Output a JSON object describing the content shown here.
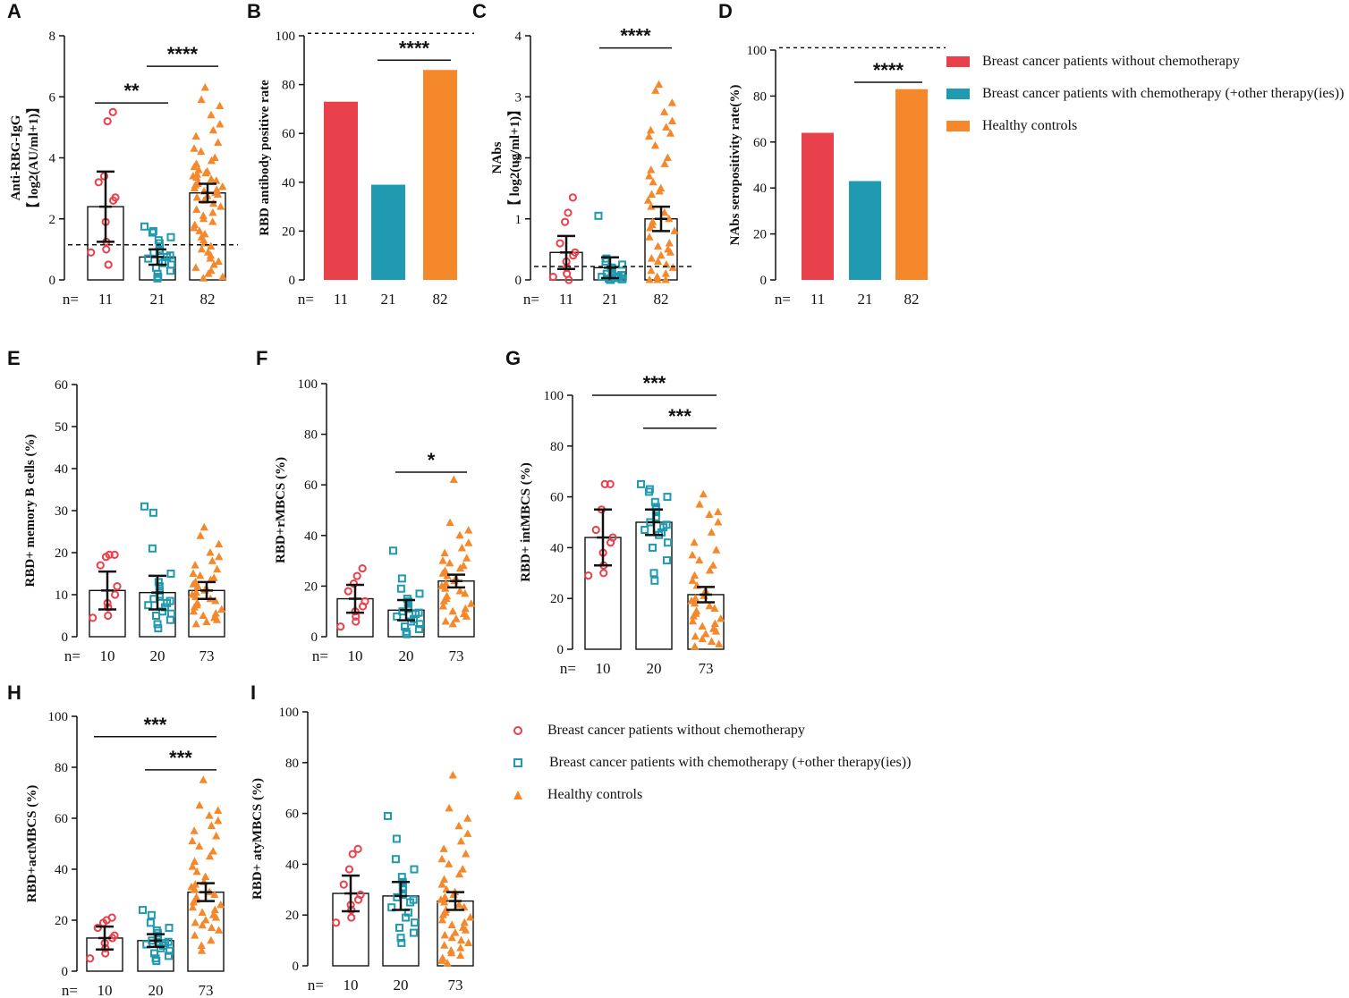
{
  "colors": {
    "red": "#E8414C",
    "teal": "#1F9AB0",
    "orange": "#F5882A",
    "axis": "#111111"
  },
  "bar_legend": {
    "items": [
      {
        "label": "Breast cancer patients without chemotherapy",
        "color": "#E8414C"
      },
      {
        "label": "Breast cancer patients with chemotherapy (+other therapy(ies))",
        "color": "#1F9AB0"
      },
      {
        "label": "Healthy controls",
        "color": "#F5882A"
      }
    ]
  },
  "scatter_legend": {
    "items": [
      {
        "label": "Breast cancer patients without chemotherapy",
        "marker": "circle",
        "color": "#E8414C"
      },
      {
        "label": "Breast cancer patients with chemotherapy (+other therapy(ies))",
        "marker": "square",
        "color": "#1F9AB0"
      },
      {
        "label": "Healthy controls",
        "marker": "triangle",
        "color": "#F5882A"
      }
    ]
  },
  "chart_data": [
    {
      "panel": "A",
      "type": "bar-scatter",
      "ylabel_lines": [
        "Anti-RBG-IgG",
        "【 log2(AU/ml+1)】"
      ],
      "ylim": [
        0,
        8
      ],
      "yticks": [
        0,
        2,
        4,
        6,
        8
      ],
      "n_prefix": "n=",
      "n": [
        "11",
        "21",
        "82"
      ],
      "means": [
        2.4,
        0.75,
        2.85
      ],
      "sd": [
        1.15,
        0.25,
        0.3
      ],
      "cutoff": 1.15,
      "points": [
        [
          5.5,
          5.2,
          3.4,
          3.2,
          2.7,
          2.6,
          1.9,
          1.25,
          1.0,
          0.9,
          0.5
        ],
        [
          1.75,
          1.6,
          1.55,
          1.4,
          1.3,
          1.2,
          1.1,
          1.0,
          0.95,
          0.9,
          0.8,
          0.75,
          0.7,
          0.6,
          0.55,
          0.5,
          0.4,
          0.3,
          0.2,
          0.1,
          0.05
        ],
        [
          6.3,
          5.9,
          5.7,
          5.4,
          5.1,
          4.9,
          4.7,
          4.5,
          4.3,
          4.2,
          4.0,
          3.9,
          3.8,
          3.7,
          3.6,
          3.55,
          3.5,
          3.45,
          3.4,
          3.35,
          3.3,
          3.25,
          3.2,
          3.15,
          3.1,
          3.05,
          3.0,
          2.95,
          2.9,
          2.85,
          2.8,
          2.75,
          2.7,
          2.6,
          2.5,
          2.4,
          2.3,
          2.2,
          2.1,
          2.0,
          1.9,
          1.8,
          1.7,
          1.6,
          1.5,
          1.4,
          1.3,
          1.2,
          1.1,
          1.0,
          0.9,
          0.8,
          0.7,
          0.6,
          0.5,
          0.4,
          0.3,
          0.2,
          0.1,
          0.05
        ]
      ],
      "sig": [
        {
          "text": "**",
          "from": 0,
          "to": 1,
          "y": 5.8
        },
        {
          "text": "****",
          "from": 1,
          "to": 2,
          "y": 7.0
        }
      ]
    },
    {
      "panel": "B",
      "type": "bar",
      "ylabel_lines": [
        "RBD antibody positive rate"
      ],
      "ylim": [
        0,
        100
      ],
      "yticks": [
        0,
        20,
        40,
        60,
        80,
        100
      ],
      "n_prefix": "n=",
      "n": [
        "11",
        "21",
        "82"
      ],
      "values": [
        73,
        39,
        86
      ],
      "reference": 101,
      "sig": [
        {
          "text": "****",
          "from": 1,
          "to": 2,
          "y": 90
        }
      ]
    },
    {
      "panel": "C",
      "type": "bar-scatter",
      "ylabel_lines": [
        "NAbs",
        "【 log2(ug/ml+1)】"
      ],
      "ylim": [
        0,
        4
      ],
      "yticks": [
        0,
        1,
        2,
        3,
        4
      ],
      "n_prefix": "n=",
      "n": [
        "11",
        "21",
        "82"
      ],
      "means": [
        0.45,
        0.2,
        1.0
      ],
      "sd": [
        0.27,
        0.17,
        0.2
      ],
      "cutoff": 0.22,
      "points": [
        [
          1.35,
          1.1,
          0.95,
          0.6,
          0.45,
          0.4,
          0.3,
          0.2,
          0.1,
          0.05,
          0.0
        ],
        [
          1.05,
          0.35,
          0.3,
          0.25,
          0.2,
          0.2,
          0.18,
          0.15,
          0.12,
          0.1,
          0.08,
          0.06,
          0.05,
          0.04,
          0.03,
          0.02,
          0.02,
          0.01,
          0.01,
          0.0,
          0.0
        ],
        [
          3.2,
          3.1,
          2.9,
          2.75,
          2.6,
          2.5,
          2.45,
          2.4,
          2.35,
          2.2,
          2.0,
          1.9,
          1.8,
          1.7,
          1.6,
          1.5,
          1.45,
          1.4,
          1.3,
          1.2,
          1.1,
          1.0,
          0.95,
          0.9,
          0.85,
          0.8,
          0.7,
          0.6,
          0.55,
          0.5,
          0.45,
          0.4,
          0.35,
          0.3,
          0.25,
          0.2,
          0.15,
          0.1,
          0.05,
          0.0,
          0.0,
          0.0
        ]
      ],
      "sig": [
        {
          "text": "****",
          "from": 1,
          "to": 2,
          "y": 3.8
        }
      ]
    },
    {
      "panel": "D",
      "type": "bar",
      "ylabel_lines": [
        "NAbs seropositivity rate(%)"
      ],
      "ylim": [
        0,
        100
      ],
      "yticks": [
        0,
        20,
        40,
        60,
        80,
        100
      ],
      "n_prefix": "n=",
      "n": [
        "11",
        "21",
        "82"
      ],
      "values": [
        64,
        43,
        83
      ],
      "reference": 101,
      "sig": [
        {
          "text": "****",
          "from": 1,
          "to": 2,
          "y": 86
        }
      ]
    },
    {
      "panel": "E",
      "type": "bar-scatter",
      "ylabel_lines": [
        "RBD+ memory B cells (%)"
      ],
      "ylim": [
        0,
        60
      ],
      "yticks": [
        0,
        10,
        20,
        30,
        40,
        50,
        60
      ],
      "n_prefix": "n=",
      "n": [
        "10",
        "20",
        "73"
      ],
      "means": [
        11,
        10.5,
        11
      ],
      "sd": [
        4.5,
        4.0,
        2.0
      ],
      "points": [
        [
          19.5,
          19.5,
          19.0,
          17.0,
          12.0,
          10.0,
          8.0,
          7.0,
          5.0,
          4.5
        ],
        [
          31.0,
          29.5,
          21.0,
          15.0,
          13.0,
          12.0,
          11.0,
          10.0,
          9.5,
          9.0,
          8.5,
          8.0,
          7.5,
          7.0,
          6.0,
          5.5,
          5.0,
          4.0,
          3.0,
          2.0
        ],
        [
          26.0,
          24.0,
          22.0,
          20.0,
          19.0,
          18.0,
          17.0,
          16.0,
          15.0,
          14.5,
          14.0,
          13.5,
          13.0,
          12.5,
          12.0,
          11.5,
          11.0,
          10.5,
          10.0,
          9.5,
          9.0,
          8.5,
          8.0,
          7.5,
          7.0,
          6.5,
          6.0,
          5.5,
          5.0,
          4.5,
          4.0,
          3.5,
          3.0
        ]
      ]
    },
    {
      "panel": "F",
      "type": "bar-scatter",
      "ylabel_lines": [
        "RBD+rMBCS (%)"
      ],
      "ylim": [
        0,
        100
      ],
      "yticks": [
        0,
        20,
        40,
        60,
        80,
        100
      ],
      "n_prefix": "n=",
      "n": [
        "10",
        "20",
        "73"
      ],
      "means": [
        15,
        10.5,
        22
      ],
      "sd": [
        5.5,
        4.0,
        2.5
      ],
      "points": [
        [
          27.0,
          24.0,
          21.0,
          18.0,
          14.0,
          12.0,
          10.0,
          8.0,
          6.0,
          4.0
        ],
        [
          34.0,
          23.0,
          19.0,
          17.0,
          15.0,
          14.0,
          13.0,
          12.0,
          11.0,
          10.0,
          9.5,
          9.0,
          8.0,
          7.0,
          6.0,
          5.0,
          4.0,
          3.0,
          2.0,
          1.0
        ],
        [
          62.0,
          45.0,
          42.0,
          40.0,
          37.0,
          35.0,
          33.0,
          31.0,
          30.0,
          29.0,
          28.0,
          27.0,
          26.0,
          25.0,
          24.0,
          23.0,
          22.0,
          21.0,
          20.0,
          19.0,
          18.0,
          17.0,
          16.0,
          15.0,
          14.0,
          13.0,
          12.0,
          11.0,
          10.0,
          9.0,
          8.0,
          7.0,
          6.0,
          5.0
        ]
      ],
      "sig": [
        {
          "text": "*",
          "from": 1,
          "to": 2,
          "y": 65
        }
      ]
    },
    {
      "panel": "G",
      "type": "bar-scatter",
      "ylabel_lines": [
        "RBD+ intMBCS (%)"
      ],
      "ylim": [
        0,
        100
      ],
      "yticks": [
        0,
        20,
        40,
        60,
        80,
        100
      ],
      "n_prefix": "n=",
      "n": [
        "10",
        "20",
        "73"
      ],
      "means": [
        44,
        50,
        21.5
      ],
      "sd": [
        11,
        5,
        3
      ],
      "points": [
        [
          65.0,
          65.0,
          55.0,
          47.0,
          44.0,
          42.0,
          38.0,
          33.0,
          30.0,
          29.0
        ],
        [
          65.0,
          63.0,
          62.0,
          60.0,
          58.0,
          56.0,
          55.0,
          54.0,
          52.0,
          50.0,
          49.0,
          48.0,
          47.0,
          46.0,
          45.0,
          42.0,
          40.0,
          35.0,
          30.0,
          27.0
        ],
        [
          61.0,
          57.0,
          54.0,
          53.0,
          50.0,
          46.0,
          42.0,
          39.0,
          37.0,
          35.0,
          33.0,
          31.0,
          29.0,
          27.0,
          25.0,
          23.0,
          21.0,
          20.0,
          19.0,
          18.0,
          17.0,
          16.0,
          15.0,
          14.0,
          13.0,
          12.0,
          11.0,
          10.0,
          9.0,
          8.0,
          7.0,
          6.0,
          5.0,
          4.0,
          3.0,
          2.0,
          1.0
        ]
      ],
      "sig": [
        {
          "text": "***",
          "from": 0,
          "to": 2,
          "y": 100
        },
        {
          "text": "***",
          "from": 1,
          "to": 2,
          "y": 87
        }
      ]
    },
    {
      "panel": "H",
      "type": "bar-scatter",
      "ylabel_lines": [
        "RBD+actMBCS (%)"
      ],
      "ylim": [
        0,
        100
      ],
      "yticks": [
        0,
        20,
        40,
        60,
        80,
        100
      ],
      "n_prefix": "n=",
      "n": [
        "10",
        "20",
        "73"
      ],
      "means": [
        13,
        12,
        31
      ],
      "sd": [
        4.5,
        2.5,
        3.5
      ],
      "points": [
        [
          21.0,
          20.0,
          19.0,
          17.0,
          14.0,
          13.0,
          11.0,
          9.0,
          7.0,
          5.0
        ],
        [
          24.0,
          22.0,
          19.0,
          17.0,
          16.0,
          15.0,
          14.0,
          13.0,
          12.5,
          12.0,
          11.5,
          11.0,
          10.5,
          10.0,
          9.0,
          8.0,
          7.0,
          6.0,
          5.0,
          4.0
        ],
        [
          75.0,
          65.0,
          63.0,
          61.0,
          59.0,
          57.0,
          55.0,
          53.0,
          51.0,
          49.0,
          47.0,
          45.0,
          43.0,
          41.0,
          39.0,
          37.0,
          35.0,
          34.0,
          33.0,
          32.0,
          31.0,
          30.0,
          29.0,
          28.0,
          27.0,
          26.0,
          25.0,
          24.0,
          23.0,
          22.0,
          21.0,
          20.0,
          19.0,
          18.0,
          17.0,
          16.0,
          14.0,
          12.0,
          10.0,
          8.0
        ]
      ],
      "sig": [
        {
          "text": "***",
          "from": 0,
          "to": 2,
          "y": 92
        },
        {
          "text": "***",
          "from": 1,
          "to": 2,
          "y": 79
        }
      ]
    },
    {
      "panel": "I",
      "type": "bar-scatter",
      "ylabel_lines": [
        "RBD+ atyMBCS (%)"
      ],
      "ylim": [
        0,
        100
      ],
      "yticks": [
        0,
        20,
        40,
        60,
        80,
        100
      ],
      "n_prefix": "n=",
      "n": [
        "10",
        "20",
        "73"
      ],
      "means": [
        28.5,
        27.5,
        25.5
      ],
      "sd": [
        7,
        5.5,
        3.5
      ],
      "points": [
        [
          46.0,
          44.0,
          38.0,
          32.0,
          28.0,
          26.0,
          24.0,
          22.0,
          19.0,
          17.0
        ],
        [
          59.0,
          50.0,
          42.0,
          38.0,
          35.0,
          33.0,
          31.0,
          30.0,
          28.0,
          27.0,
          26.0,
          25.0,
          23.0,
          21.0,
          19.0,
          17.0,
          15.0,
          13.0,
          11.0,
          9.0
        ],
        [
          75.0,
          62.0,
          58.0,
          55.0,
          52.0,
          49.0,
          46.0,
          44.0,
          42.0,
          40.0,
          38.0,
          36.0,
          34.0,
          32.0,
          30.0,
          29.0,
          28.0,
          27.0,
          26.0,
          25.0,
          24.0,
          23.0,
          22.0,
          21.0,
          20.0,
          19.0,
          18.0,
          17.0,
          16.0,
          15.0,
          14.0,
          13.0,
          12.0,
          11.0,
          10.0,
          9.0,
          8.0,
          7.0,
          6.0,
          5.0,
          4.0,
          3.0,
          2.0,
          1.0
        ]
      ]
    }
  ]
}
